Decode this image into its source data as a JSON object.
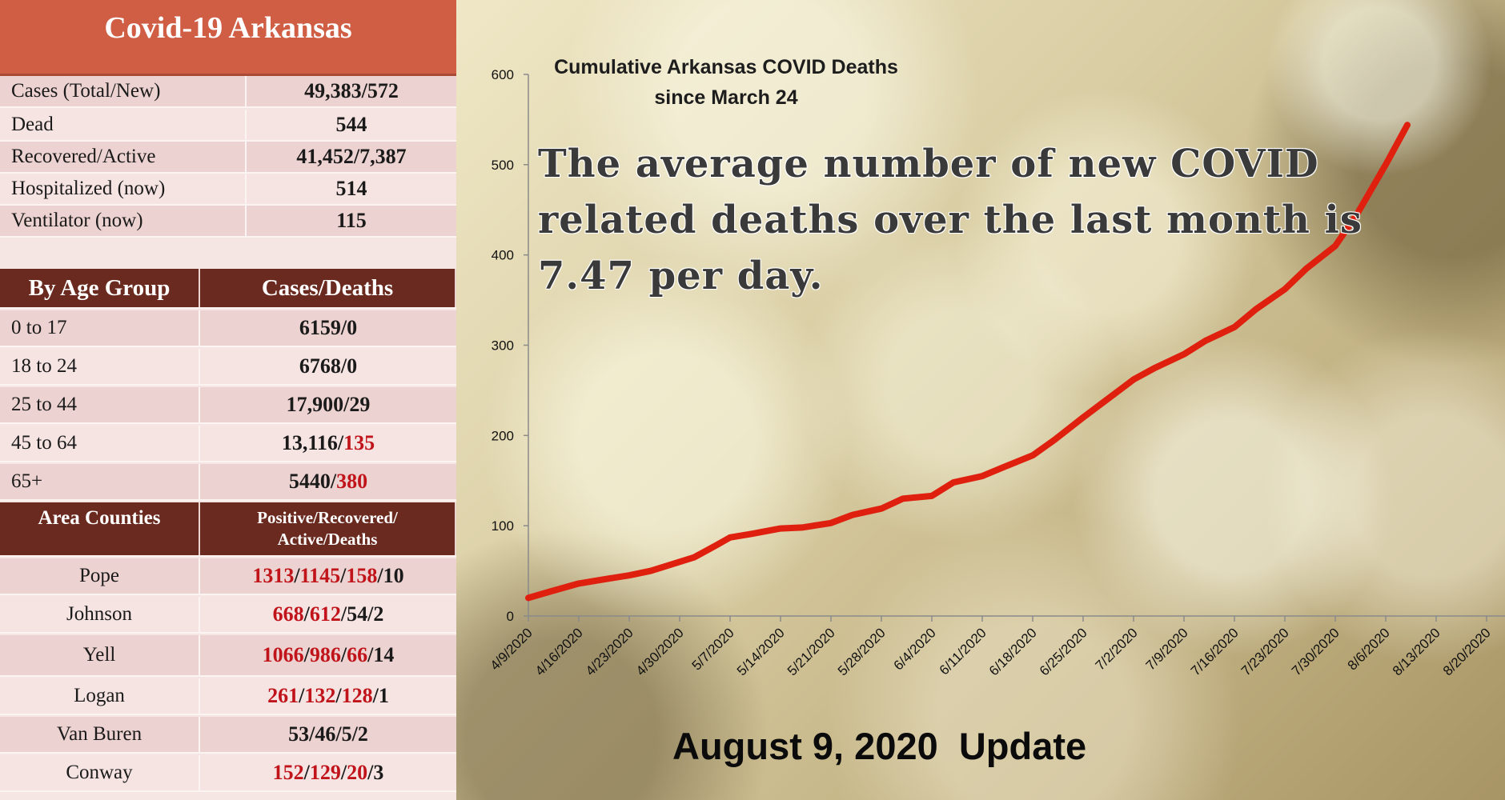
{
  "table": {
    "title": "Covid-19 Arkansas",
    "summary": [
      {
        "label": "Cases (Total/New)",
        "value": "49,383/572"
      },
      {
        "label": "Dead",
        "value": "544"
      },
      {
        "label": "Recovered/Active",
        "value": "41,452/7,387"
      },
      {
        "label": "Hospitalized (now)",
        "value": "514"
      },
      {
        "label": "Ventilator (now)",
        "value": "115"
      }
    ],
    "age_header": {
      "col1": "By Age Group",
      "col2": "Cases/Deaths"
    },
    "age_groups": [
      {
        "label": "0 to 17",
        "cases": "6159",
        "deaths": "0",
        "deaths_red": false
      },
      {
        "label": "18 to 24",
        "cases": "6768",
        "deaths": "0",
        "deaths_red": false
      },
      {
        "label": "25 to 44",
        "cases": "17,900",
        "deaths": "29",
        "deaths_red": false
      },
      {
        "label": "45 to 64",
        "cases": "13,116",
        "deaths": "135",
        "deaths_red": true
      },
      {
        "label": "65+",
        "cases": "5440",
        "deaths": "380",
        "deaths_red": true
      }
    ],
    "county_header": {
      "col1": "Area Counties",
      "col2_line1": "Positive/Recovered/",
      "col2_line2": "Active/Deaths"
    },
    "counties": [
      {
        "name": "Pope",
        "positive": "1313",
        "recovered": "1145",
        "active": "158",
        "deaths": "10",
        "red": [
          true,
          true,
          true,
          false
        ]
      },
      {
        "name": "Johnson",
        "positive": "668",
        "recovered": "612",
        "active": "54",
        "deaths": "2",
        "red": [
          true,
          true,
          false,
          false
        ]
      },
      {
        "name": "Yell",
        "positive": "1066",
        "recovered": "986",
        "active": "66",
        "deaths": "14",
        "red": [
          true,
          true,
          true,
          false
        ]
      },
      {
        "name": "Logan",
        "positive": "261",
        "recovered": "132",
        "active": "128",
        "deaths": "1",
        "red": [
          true,
          true,
          true,
          false
        ]
      },
      {
        "name": "Van Buren",
        "positive": "53",
        "recovered": "46",
        "active": "5",
        "deaths": "2",
        "red": [
          false,
          false,
          false,
          false
        ]
      },
      {
        "name": "Conway",
        "positive": "152",
        "recovered": "129",
        "active": "20",
        "deaths": "3",
        "red": [
          true,
          true,
          true,
          false
        ]
      }
    ]
  },
  "chart_data": {
    "type": "line",
    "title_line1": "Cumulative Arkansas COVID Deaths",
    "title_line2": "since March 24",
    "xlabel": "",
    "ylabel": "",
    "ylim": [
      0,
      600
    ],
    "yticks": [
      0,
      100,
      200,
      300,
      400,
      500,
      600
    ],
    "xtick_labels": [
      "4/9/2020",
      "4/16/2020",
      "4/23/2020",
      "4/30/2020",
      "5/7/2020",
      "5/14/2020",
      "5/21/2020",
      "5/28/2020",
      "6/4/2020",
      "6/11/2020",
      "6/18/2020",
      "6/25/2020",
      "7/2/2020",
      "7/9/2020",
      "7/16/2020",
      "7/23/2020",
      "7/30/2020",
      "8/6/2020",
      "8/13/2020",
      "8/20/2020"
    ],
    "xlim": [
      "4/9/2020",
      "8/20/2020"
    ],
    "grid": false,
    "series": [
      {
        "color": "#e0200f",
        "x": [
          "4/9/2020",
          "4/12/2020",
          "4/16/2020",
          "4/19/2020",
          "4/23/2020",
          "4/26/2020",
          "4/30/2020",
          "5/2/2020",
          "5/5/2020",
          "5/7/2020",
          "5/10/2020",
          "5/14/2020",
          "5/17/2020",
          "5/21/2020",
          "5/24/2020",
          "5/28/2020",
          "5/31/2020",
          "6/4/2020",
          "6/7/2020",
          "6/11/2020",
          "6/14/2020",
          "6/18/2020",
          "6/21/2020",
          "6/25/2020",
          "6/28/2020",
          "7/2/2020",
          "7/5/2020",
          "7/9/2020",
          "7/12/2020",
          "7/16/2020",
          "7/19/2020",
          "7/23/2020",
          "7/26/2020",
          "7/30/2020",
          "8/2/2020",
          "8/6/2020",
          "8/9/2020"
        ],
        "y": [
          20,
          27,
          36,
          40,
          45,
          50,
          60,
          65,
          78,
          87,
          91,
          97,
          98,
          103,
          112,
          119,
          130,
          133,
          148,
          155,
          165,
          178,
          195,
          220,
          238,
          262,
          275,
          290,
          305,
          320,
          340,
          362,
          385,
          410,
          445,
          500,
          544
        ]
      }
    ],
    "annotation": "The average number of new COVID related deaths over the last month is 7.47 per day."
  },
  "footer": {
    "update": "August 9, 2020  Update"
  }
}
